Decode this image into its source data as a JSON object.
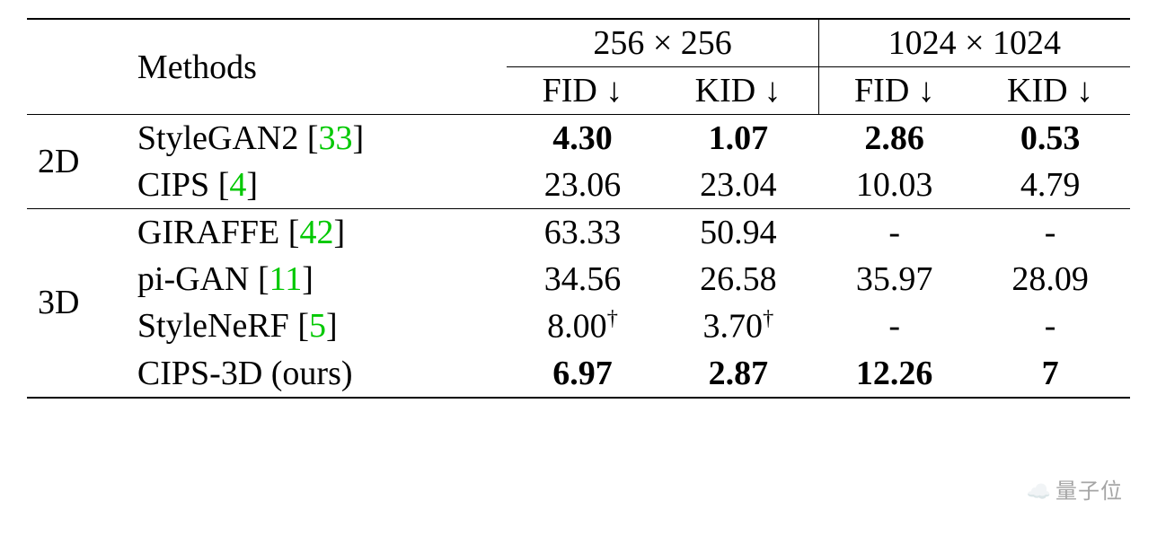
{
  "type": "table",
  "background_color": "#ffffff",
  "text_color": "#000000",
  "citation_color": "#00c800",
  "font_family": "Times New Roman",
  "title_fontsize": 38,
  "header": {
    "methods_label": "Methods",
    "res256": "256 × 256",
    "res1024": "1024 × 1024",
    "fid": "FID ↓",
    "kid": "KID ↓"
  },
  "groups": [
    {
      "label": "2D",
      "rows": [
        {
          "method": "StyleGAN2",
          "citation": "33",
          "values": {
            "fid256": "4.30",
            "kid256": "1.07",
            "fid1024": "2.86",
            "kid1024": "0.53"
          },
          "bold": true,
          "dagger": false
        },
        {
          "method": "CIPS",
          "citation": "4",
          "values": {
            "fid256": "23.06",
            "kid256": "23.04",
            "fid1024": "10.03",
            "kid1024": "4.79"
          },
          "bold": false,
          "dagger": false
        }
      ]
    },
    {
      "label": "3D",
      "rows": [
        {
          "method": "GIRAFFE",
          "citation": "42",
          "values": {
            "fid256": "63.33",
            "kid256": "50.94",
            "fid1024": "-",
            "kid1024": "-"
          },
          "bold": false,
          "dagger": false
        },
        {
          "method": "pi-GAN",
          "citation": "11",
          "values": {
            "fid256": "34.56",
            "kid256": "26.58",
            "fid1024": "35.97",
            "kid1024": "28.09"
          },
          "bold": false,
          "dagger": false
        },
        {
          "method": "StyleNeRF",
          "citation": "5",
          "values": {
            "fid256": "8.00",
            "kid256": "3.70",
            "fid1024": "-",
            "kid1024": "-"
          },
          "bold": false,
          "dagger": true
        },
        {
          "method": "CIPS-3D (ours)",
          "citation": "",
          "values": {
            "fid256": "6.97",
            "kid256": "2.87",
            "fid1024": "12.26",
            "kid1024": "7"
          },
          "bold": true,
          "dagger": false
        }
      ]
    }
  ],
  "watermark": {
    "emoji": "☁️",
    "text": "量子位"
  }
}
